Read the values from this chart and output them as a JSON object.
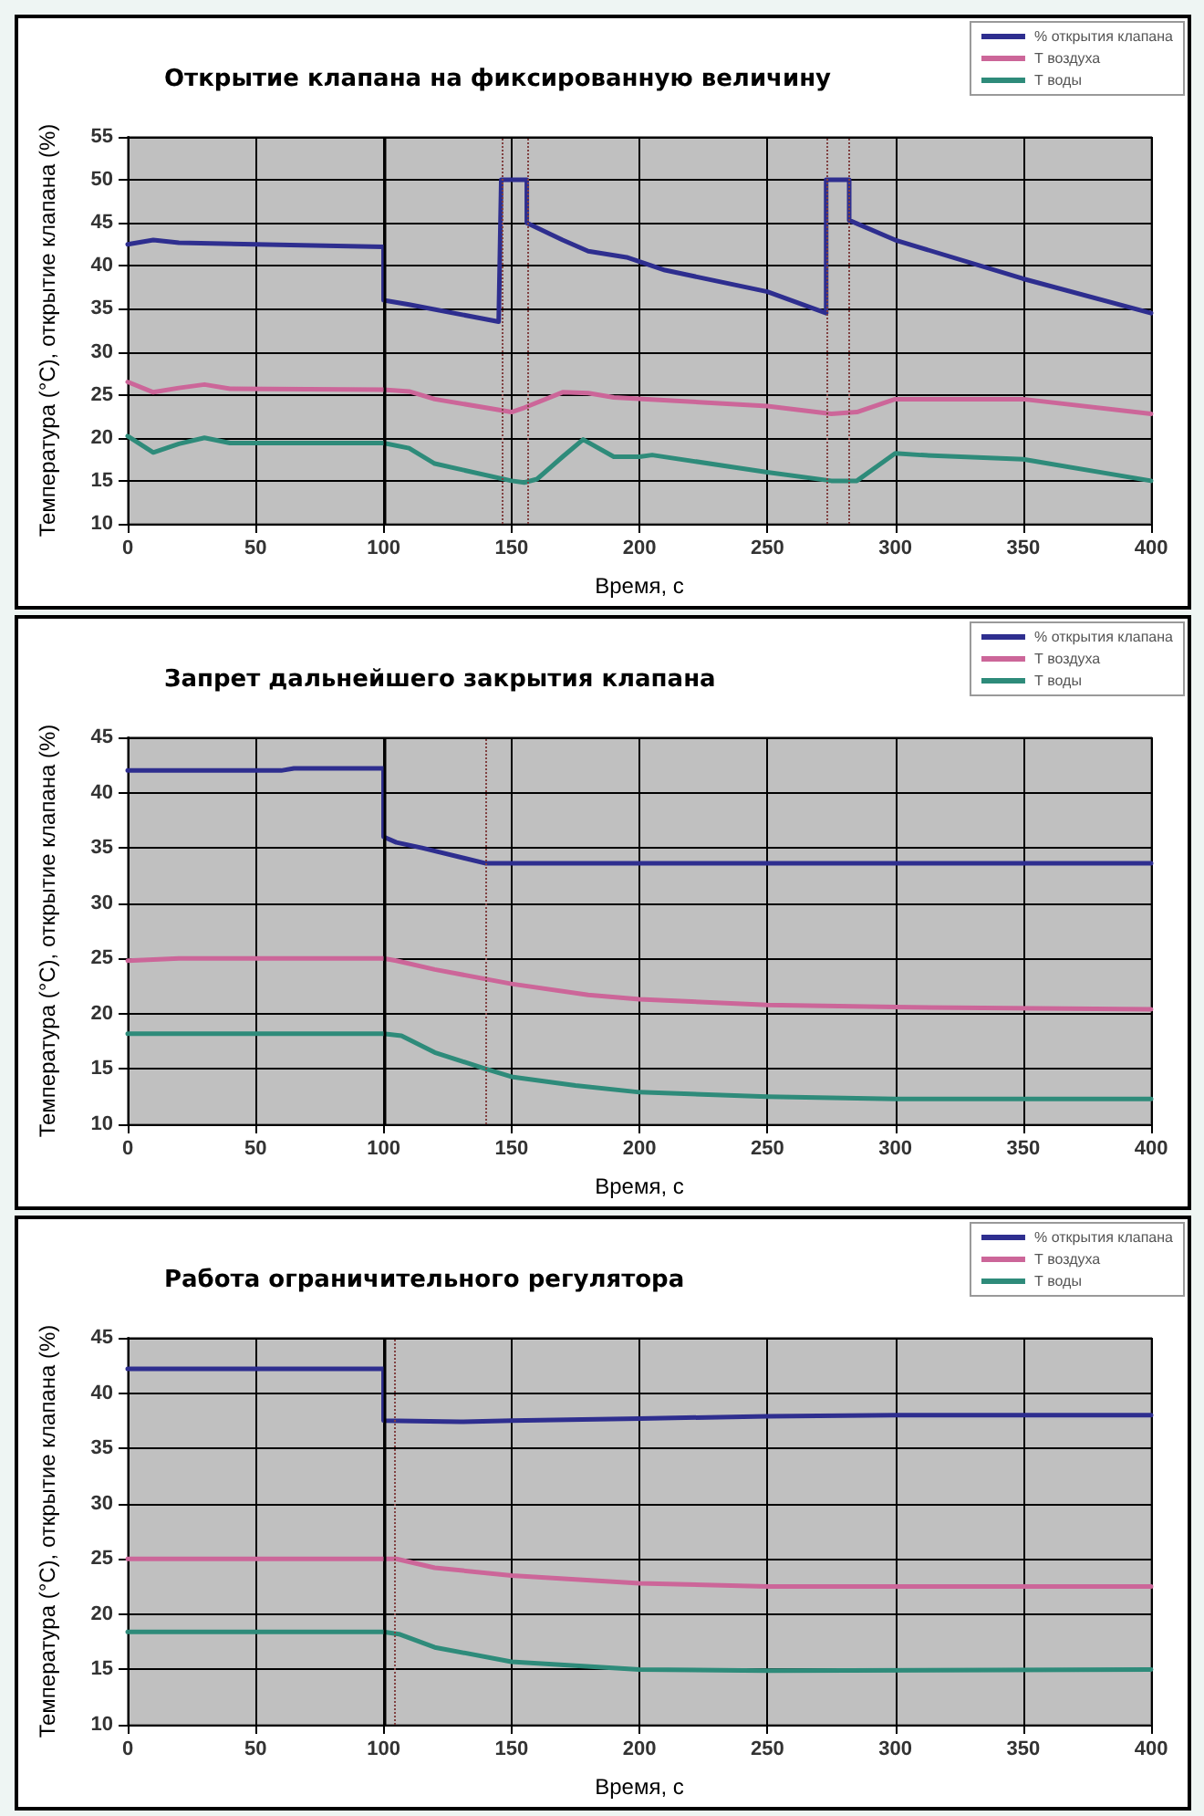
{
  "chart_data": [
    {
      "type": "line",
      "title": "Открытие клапана на фиксированную величину",
      "xlabel": "Время, с",
      "ylabel": "Температура (°C), открытие клапана (%)",
      "xlim": [
        0,
        400
      ],
      "xticks": [
        0,
        50,
        100,
        150,
        200,
        250,
        300,
        350,
        400
      ],
      "ylim": [
        10,
        55
      ],
      "yticks": [
        10,
        15,
        20,
        25,
        30,
        35,
        40,
        45,
        50,
        55
      ],
      "grid": true,
      "legend": "top right",
      "marker": "none",
      "line_style": "solid",
      "ref_lines": [
        {
          "axis": "x",
          "value": 100,
          "line_style": "solid",
          "color": "#000000"
        },
        {
          "axis": "x",
          "value": 146,
          "line_style": "dotted",
          "color": "#804040"
        },
        {
          "axis": "x",
          "value": 156,
          "line_style": "dotted",
          "color": "#804040"
        },
        {
          "axis": "x",
          "value": 273,
          "line_style": "dotted",
          "color": "#804040"
        },
        {
          "axis": "x",
          "value": 282,
          "line_style": "dotted",
          "color": "#804040"
        }
      ],
      "series": [
        {
          "name": "% открытия клапана",
          "color": "#2e2e8f",
          "x": [
            0,
            10,
            20,
            50,
            100,
            100,
            110,
            145,
            146,
            156,
            156,
            170,
            180,
            195,
            210,
            250,
            273,
            273,
            282,
            282,
            300,
            350,
            400
          ],
          "values": [
            42.5,
            43,
            42.7,
            42.5,
            42.2,
            36,
            35.5,
            33.5,
            50,
            50,
            45,
            43,
            41.7,
            41,
            39.5,
            37,
            34.5,
            50,
            50,
            45.3,
            43,
            38.5,
            34.5
          ]
        },
        {
          "name": "Т воздуха",
          "color": "#cc6699",
          "x": [
            0,
            10,
            20,
            30,
            40,
            100,
            110,
            120,
            150,
            155,
            170,
            180,
            190,
            250,
            275,
            285,
            300,
            350,
            400
          ],
          "values": [
            26.5,
            25.3,
            25.8,
            26.2,
            25.7,
            25.6,
            25.4,
            24.5,
            23,
            23.5,
            25.3,
            25.2,
            24.7,
            23.7,
            22.8,
            23,
            24.5,
            24.5,
            22.8
          ]
        },
        {
          "name": "Т воды",
          "color": "#2e8b7a",
          "x": [
            0,
            10,
            20,
            30,
            40,
            100,
            110,
            120,
            150,
            155,
            160,
            170,
            178,
            190,
            200,
            205,
            250,
            275,
            285,
            300,
            310,
            350,
            400
          ],
          "values": [
            20.2,
            18.3,
            19.3,
            20,
            19.4,
            19.4,
            18.8,
            17,
            15,
            14.8,
            15.2,
            17.8,
            19.8,
            17.8,
            17.8,
            18,
            16,
            15,
            15,
            18.2,
            18,
            17.5,
            15
          ]
        }
      ]
    },
    {
      "type": "line",
      "title": "Запрет дальнейшего закрытия клапана",
      "xlabel": "Время, с",
      "ylabel": "Температура (°C), открытие клапана (%)",
      "xlim": [
        0,
        400
      ],
      "xticks": [
        0,
        50,
        100,
        150,
        200,
        250,
        300,
        350,
        400
      ],
      "ylim": [
        10,
        45
      ],
      "yticks": [
        10,
        15,
        20,
        25,
        30,
        35,
        40,
        45
      ],
      "grid": true,
      "legend": "top right",
      "marker": "none",
      "line_style": "solid",
      "ref_lines": [
        {
          "axis": "x",
          "value": 100,
          "line_style": "solid",
          "color": "#000000"
        },
        {
          "axis": "x",
          "value": 140,
          "line_style": "dotted",
          "color": "#804040"
        }
      ],
      "series": [
        {
          "name": "% открытия клапана",
          "color": "#2e2e8f",
          "x": [
            0,
            60,
            65,
            100,
            100,
            105,
            115,
            140,
            400
          ],
          "values": [
            42,
            42,
            42.2,
            42.2,
            36,
            35.5,
            35,
            33.6,
            33.6
          ]
        },
        {
          "name": "Т воздуха",
          "color": "#cc6699",
          "x": [
            0,
            20,
            100,
            105,
            120,
            150,
            180,
            200,
            250,
            300,
            400
          ],
          "values": [
            24.8,
            25,
            25,
            24.8,
            24,
            22.7,
            21.7,
            21.3,
            20.8,
            20.6,
            20.4
          ]
        },
        {
          "name": "Т воды",
          "color": "#2e8b7a",
          "x": [
            0,
            100,
            107,
            120,
            140,
            150,
            175,
            200,
            250,
            300,
            400
          ],
          "values": [
            18.2,
            18.2,
            18,
            16.5,
            15,
            14.3,
            13.5,
            12.9,
            12.5,
            12.3,
            12.3
          ]
        }
      ]
    },
    {
      "type": "line",
      "title": "Работа ограничительного регулятора",
      "xlabel": "Время, с",
      "ylabel": "Температура (°C), открытие клапана (%)",
      "xlim": [
        0,
        400
      ],
      "xticks": [
        0,
        50,
        100,
        150,
        200,
        250,
        300,
        350,
        400
      ],
      "ylim": [
        10,
        45
      ],
      "yticks": [
        10,
        15,
        20,
        25,
        30,
        35,
        40,
        45
      ],
      "grid": true,
      "legend": "top right",
      "marker": "none",
      "line_style": "solid",
      "ref_lines": [
        {
          "axis": "x",
          "value": 100,
          "line_style": "solid",
          "color": "#000000"
        },
        {
          "axis": "x",
          "value": 104,
          "line_style": "dotted",
          "color": "#804040"
        }
      ],
      "series": [
        {
          "name": "% открытия клапана",
          "color": "#2e2e8f",
          "x": [
            0,
            100,
            100,
            130,
            150,
            200,
            250,
            300,
            400
          ],
          "values": [
            42.2,
            42.2,
            37.5,
            37.4,
            37.5,
            37.7,
            37.9,
            38,
            38
          ]
        },
        {
          "name": "Т воздуха",
          "color": "#cc6699",
          "x": [
            0,
            100,
            105,
            120,
            150,
            200,
            250,
            400
          ],
          "values": [
            25,
            25,
            25,
            24.2,
            23.5,
            22.8,
            22.5,
            22.5
          ]
        },
        {
          "name": "Т воды",
          "color": "#2e8b7a",
          "x": [
            0,
            100,
            106,
            120,
            150,
            200,
            250,
            400
          ],
          "values": [
            18.4,
            18.4,
            18.2,
            17,
            15.7,
            15,
            14.9,
            15
          ]
        }
      ]
    }
  ]
}
